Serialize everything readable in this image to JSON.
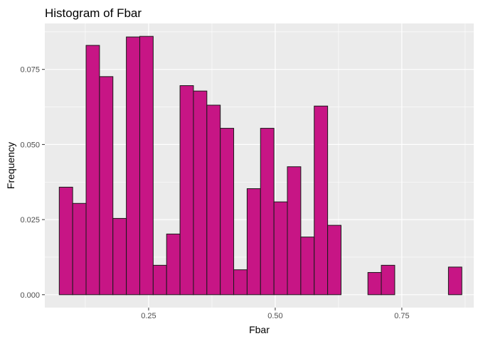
{
  "chart_data": {
    "type": "bar",
    "title": "Histogram of Fbar",
    "xlabel": "Fbar",
    "ylabel": "Frequency",
    "xlim": [
      0.045,
      0.892
    ],
    "ylim": [
      -0.0043,
      0.0903
    ],
    "x_ticks": [
      0.25,
      0.5,
      0.75
    ],
    "x_tick_labels": [
      "0.25",
      "0.50",
      "0.75"
    ],
    "y_ticks": [
      0.0,
      0.025,
      0.05,
      0.075
    ],
    "y_tick_labels": [
      "0.000",
      "0.025",
      "0.050",
      "0.075"
    ],
    "grid": true,
    "bin_start": 0.0735,
    "bin_width": 0.0265,
    "values": [
      0.0358,
      0.0304,
      0.083,
      0.0726,
      0.0254,
      0.0858,
      0.086,
      0.0098,
      0.0202,
      0.0696,
      0.0678,
      0.0631,
      0.0554,
      0.0083,
      0.0353,
      0.0554,
      0.0309,
      0.0426,
      0.0192,
      0.0628,
      0.0231,
      0.0,
      0.0,
      0.0074,
      0.0098,
      0.0,
      0.0,
      0.0,
      0.0,
      0.0092
    ],
    "colors": {
      "bar_fill": "#C71585",
      "bar_stroke": "#1a1a1a",
      "panel_background": "#EBEBEB",
      "grid_major": "#FFFFFF",
      "tick_mark": "#333333"
    }
  }
}
